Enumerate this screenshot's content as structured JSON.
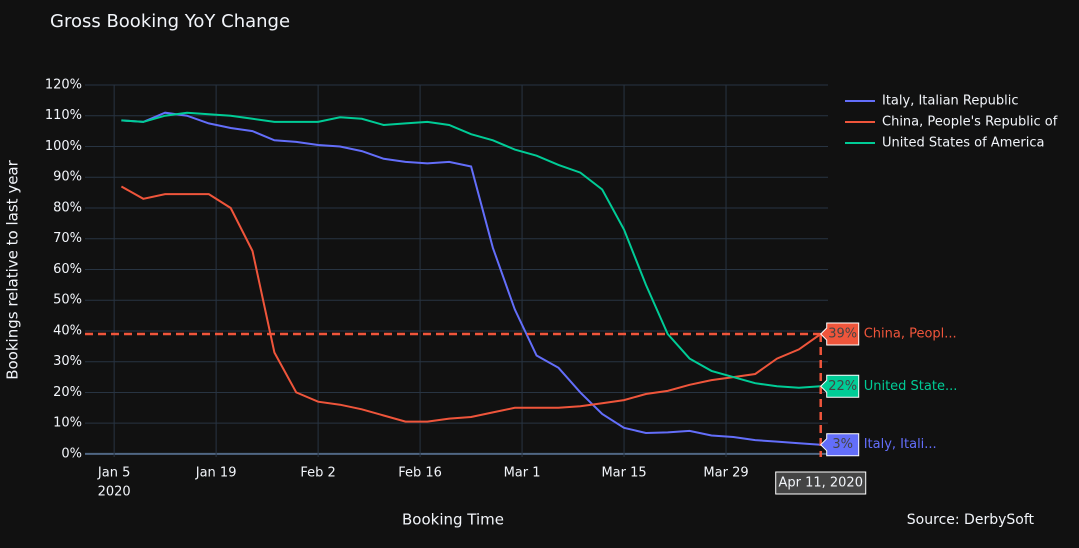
{
  "chart_data": {
    "type": "line",
    "title": "Gross Booking YoY Change",
    "x_label": "Booking Time",
    "y_label": "Bookings relative to last year",
    "source": "Source: DerbySoft",
    "x": [
      "2020-01-06",
      "2020-01-09",
      "2020-01-12",
      "2020-01-15",
      "2020-01-18",
      "2020-01-21",
      "2020-01-24",
      "2020-01-27",
      "2020-01-30",
      "2020-02-02",
      "2020-02-05",
      "2020-02-08",
      "2020-02-11",
      "2020-02-14",
      "2020-02-17",
      "2020-02-20",
      "2020-02-23",
      "2020-02-26",
      "2020-02-29",
      "2020-03-03",
      "2020-03-06",
      "2020-03-09",
      "2020-03-12",
      "2020-03-15",
      "2020-03-18",
      "2020-03-21",
      "2020-03-24",
      "2020-03-27",
      "2020-03-30",
      "2020-04-02",
      "2020-04-05",
      "2020-04-08",
      "2020-04-11"
    ],
    "series": [
      {
        "name": "Italy, Italian Republic",
        "color": "#636efa",
        "values": [
          108.5,
          108,
          111,
          110,
          107.5,
          106,
          105,
          102,
          101.5,
          100.5,
          100,
          98.5,
          96,
          95,
          94.5,
          95,
          93.5,
          67,
          47,
          32,
          28,
          20,
          13,
          8.5,
          6.8,
          7,
          7.5,
          6,
          5.5,
          4.5,
          4,
          3.5,
          3
        ]
      },
      {
        "name": "China, People's Republic of",
        "color": "#ef553b",
        "values": [
          87,
          83,
          84.5,
          84.5,
          84.5,
          80,
          66,
          33,
          20,
          17,
          16,
          14.5,
          12.5,
          10.5,
          10.5,
          11.5,
          12,
          13.5,
          15,
          15,
          15,
          15.5,
          16.5,
          17.5,
          19.5,
          20.5,
          22.5,
          24,
          25,
          26,
          31,
          34,
          39
        ]
      },
      {
        "name": "United States of America",
        "color": "#00cc96",
        "values": [
          108.5,
          108,
          110,
          111,
          110.5,
          110,
          109,
          108,
          108,
          108,
          109.5,
          109,
          107,
          107.5,
          108,
          107,
          104,
          102,
          99,
          97,
          94,
          91.5,
          86,
          73,
          55,
          39,
          31,
          27,
          25,
          23,
          22,
          21.5,
          22
        ]
      }
    ],
    "xlim": [
      "2020-01-01",
      "2020-04-12"
    ],
    "xticks": [
      {
        "value": "2020-01-05",
        "label": "Jan 5"
      },
      {
        "value": "2020-01-19",
        "label": "Jan 19"
      },
      {
        "value": "2020-02-02",
        "label": "Feb 2"
      },
      {
        "value": "2020-02-16",
        "label": "Feb 16"
      },
      {
        "value": "2020-03-01",
        "label": "Mar 1"
      },
      {
        "value": "2020-03-15",
        "label": "Mar 15"
      },
      {
        "value": "2020-03-29",
        "label": "Mar 29"
      }
    ],
    "x_tick_year": "2020",
    "ylim": [
      -1,
      120
    ],
    "yticks": [
      {
        "value": 0,
        "label": "0%"
      },
      {
        "value": 10,
        "label": "10%"
      },
      {
        "value": 20,
        "label": "20%"
      },
      {
        "value": 30,
        "label": "30%"
      },
      {
        "value": 40,
        "label": "40%"
      },
      {
        "value": 50,
        "label": "50%"
      },
      {
        "value": 60,
        "label": "60%"
      },
      {
        "value": 70,
        "label": "70%"
      },
      {
        "value": 80,
        "label": "80%"
      },
      {
        "value": 90,
        "label": "90%"
      },
      {
        "value": 100,
        "label": "100%"
      },
      {
        "value": 110,
        "label": "110%"
      },
      {
        "value": 120,
        "label": "120%"
      }
    ],
    "grid": true,
    "legend": "top-right",
    "hover": {
      "x_label": "Apr 11, 2020",
      "labels": [
        {
          "value": "3%",
          "name": "Italy, Itali..."
        },
        {
          "value": "39%",
          "name": "China, Peopl..."
        },
        {
          "value": "22%",
          "name": "United State..."
        }
      ]
    }
  }
}
